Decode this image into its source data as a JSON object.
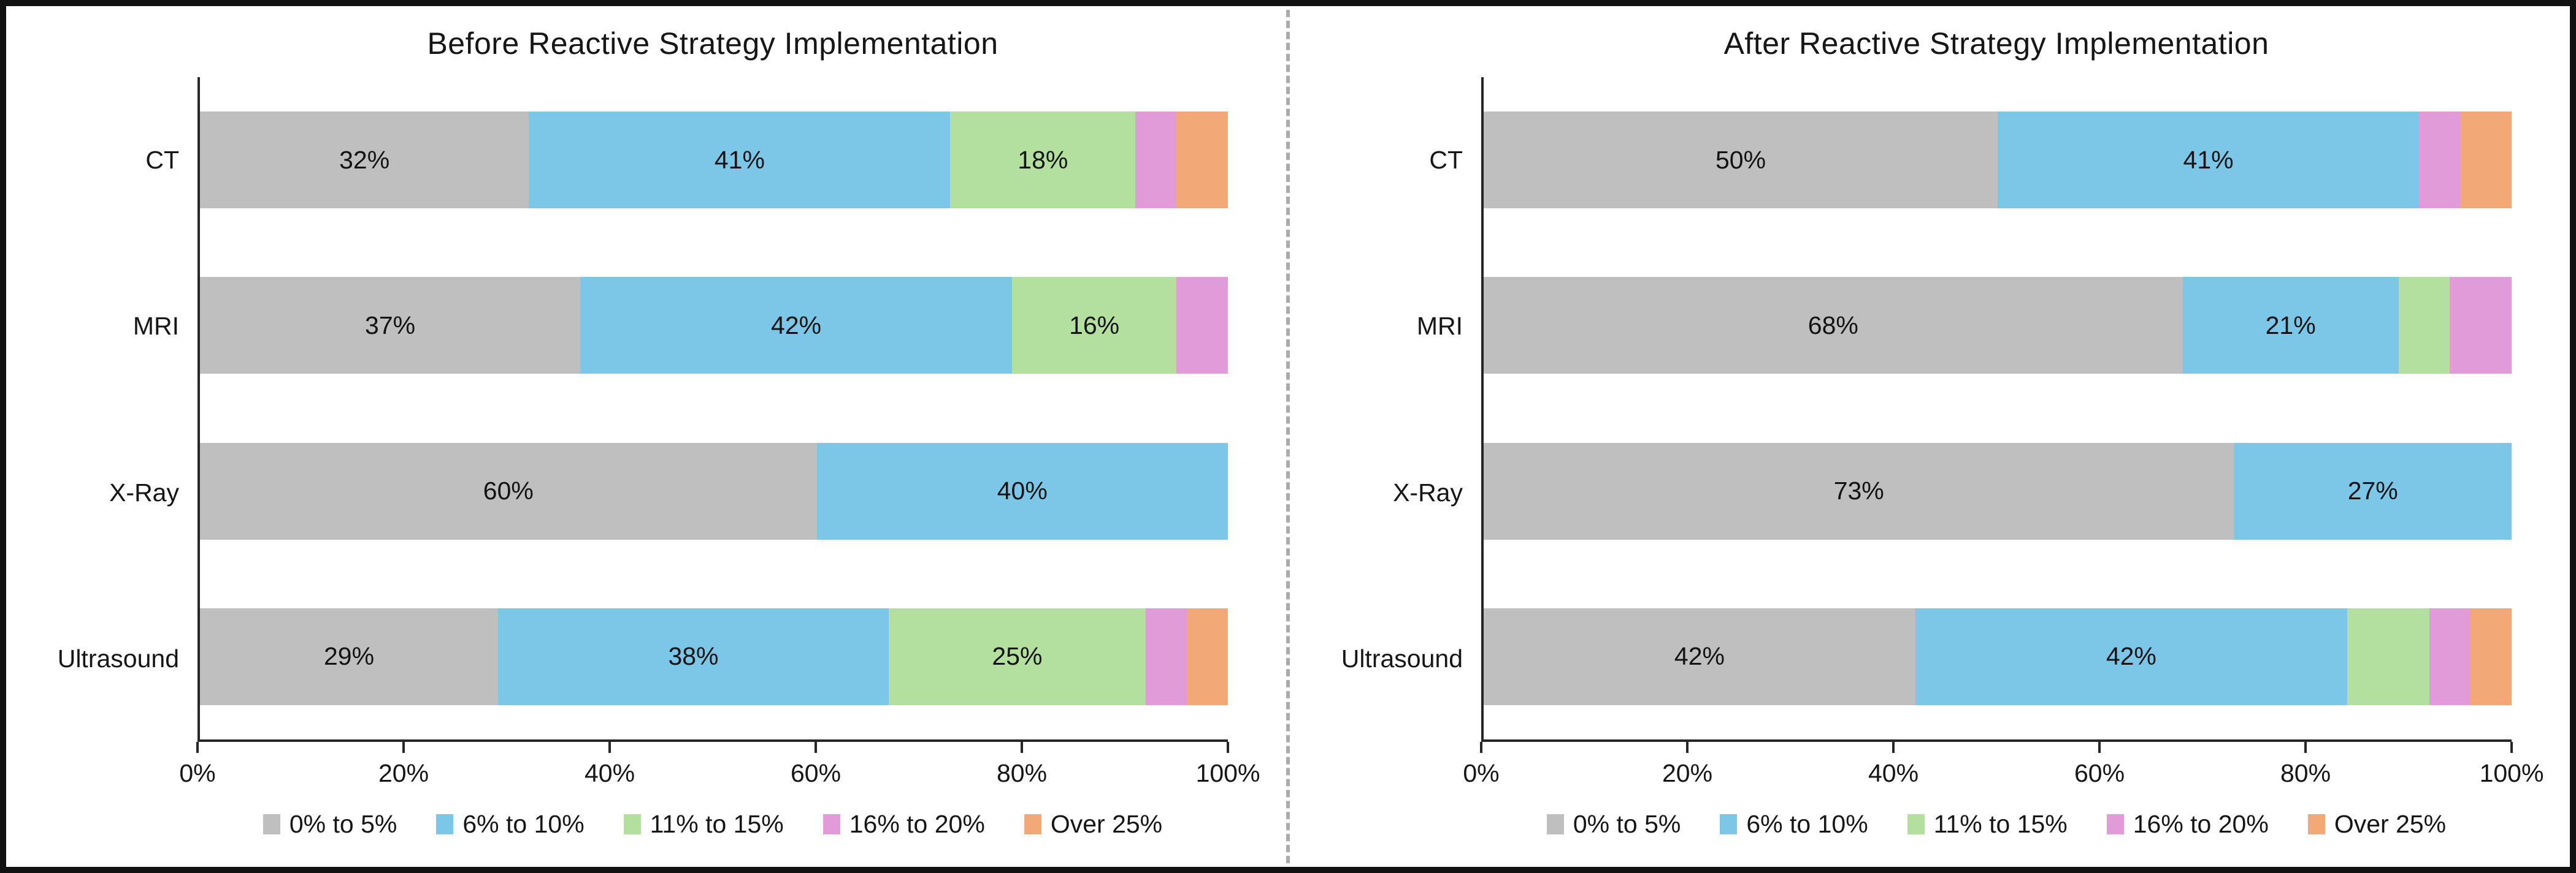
{
  "chart_data": [
    {
      "type": "bar",
      "orientation": "horizontal",
      "stacked": true,
      "title": "Before Reactive Strategy Implementation",
      "categories": [
        "CT",
        "MRI",
        "X-Ray",
        "Ultrasound"
      ],
      "series": [
        {
          "name": "0% to 5%",
          "color": "#BFBFBF",
          "values": [
            32,
            37,
            60,
            29
          ]
        },
        {
          "name": "6% to 10%",
          "color": "#7CC7E8",
          "values": [
            41,
            42,
            40,
            38
          ]
        },
        {
          "name": "11% to 15%",
          "color": "#B3DF9F",
          "values": [
            18,
            16,
            0,
            25
          ]
        },
        {
          "name": "16% to 20%",
          "color": "#E19BD9",
          "values": [
            4,
            5,
            0,
            4
          ]
        },
        {
          "name": "Over 25%",
          "color": "#F2A877",
          "values": [
            5,
            0,
            0,
            4
          ]
        }
      ],
      "x_ticks": [
        "0%",
        "20%",
        "40%",
        "60%",
        "80%",
        "100%"
      ],
      "xlim": [
        0,
        100
      ],
      "legend_position": "bottom",
      "data_label_format": "{value}%",
      "data_label_min": 10,
      "grid": false
    },
    {
      "type": "bar",
      "orientation": "horizontal",
      "stacked": true,
      "title": "After Reactive Strategy Implementation",
      "categories": [
        "CT",
        "MRI",
        "X-Ray",
        "Ultrasound"
      ],
      "series": [
        {
          "name": "0% to 5%",
          "color": "#BFBFBF",
          "values": [
            50,
            68,
            73,
            42
          ]
        },
        {
          "name": "6% to 10%",
          "color": "#7CC7E8",
          "values": [
            41,
            21,
            27,
            42
          ]
        },
        {
          "name": "11% to 15%",
          "color": "#B3DF9F",
          "values": [
            0,
            5,
            0,
            8
          ]
        },
        {
          "name": "16% to 20%",
          "color": "#E19BD9",
          "values": [
            4,
            6,
            0,
            4
          ]
        },
        {
          "name": "Over 25%",
          "color": "#F2A877",
          "values": [
            5,
            0,
            0,
            4
          ]
        }
      ],
      "x_ticks": [
        "0%",
        "20%",
        "40%",
        "60%",
        "80%",
        "100%"
      ],
      "xlim": [
        0,
        100
      ],
      "legend_position": "bottom",
      "data_label_format": "{value}%",
      "data_label_min": 10,
      "grid": false
    }
  ],
  "styles": {
    "axis_color": "#262626",
    "divider_color": "#ababab",
    "text_color": "#161616",
    "background": "#ffffff",
    "border_color": "#111111"
  }
}
